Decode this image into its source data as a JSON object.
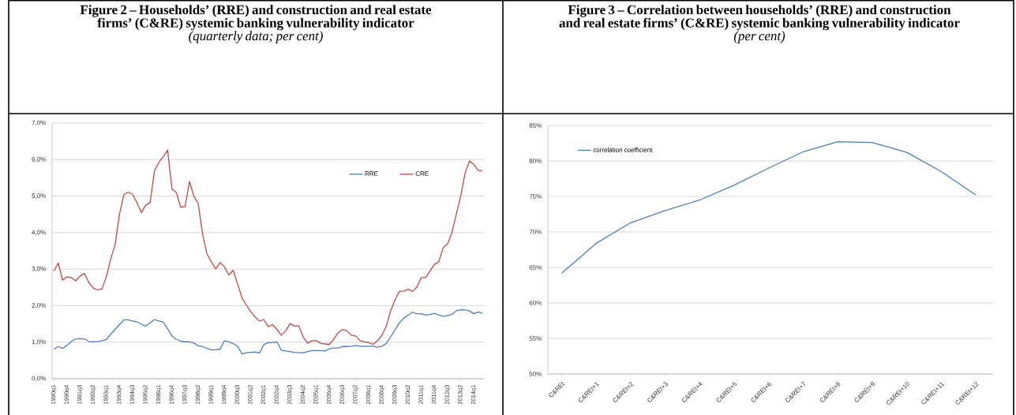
{
  "chart_data": [
    {
      "type": "line",
      "title": "Figure 2 – Households’ (RRE) and construction and real estate firms’ (C&RE) systemic banking vulnerability indicator",
      "subtitle": "(quarterly data; per cent)",
      "categories": [
        "1990q1",
        null,
        null,
        "1990q4",
        null,
        null,
        "1991q3",
        null,
        null,
        "1992q2",
        null,
        null,
        "1993q1",
        null,
        null,
        "1993q4",
        null,
        null,
        "1994q3",
        null,
        null,
        "1995q2",
        null,
        null,
        "1996q1",
        null,
        null,
        "1996q4",
        null,
        null,
        "1997q3",
        null,
        null,
        "1998q2",
        null,
        null,
        "1999q1",
        null,
        null,
        "1999q4",
        null,
        null,
        "2000q3",
        null,
        null,
        "2001q2",
        null,
        null,
        "2002q1",
        null,
        null,
        "2002q4",
        null,
        null,
        "2003q3",
        null,
        null,
        "2004q2",
        null,
        null,
        "2005q1",
        null,
        null,
        "2005q4",
        null,
        null,
        "2006q3",
        null,
        null,
        "2007q2",
        null,
        null,
        "2008q1",
        null,
        null,
        "2008q4",
        null,
        null,
        "2009q3",
        null,
        null,
        "2010q2",
        null,
        null,
        "2011q1",
        null,
        null,
        "2011q4",
        null,
        null,
        "2012q3",
        null,
        null,
        "2013q2",
        null,
        null,
        "2014q1",
        null,
        null
      ],
      "series": [
        {
          "name": "RRE",
          "color": "#4a7ebb",
          "values": [
            0.81,
            0.88,
            0.83,
            0.91,
            1.02,
            1.09,
            1.1,
            1.09,
            1.02,
            1.01,
            1.02,
            1.04,
            1.07,
            1.22,
            1.35,
            1.48,
            1.61,
            1.61,
            1.58,
            1.56,
            1.49,
            1.44,
            1.53,
            1.62,
            1.58,
            1.55,
            1.37,
            1.17,
            1.08,
            1.03,
            1.01,
            1.01,
            0.98,
            0.9,
            0.88,
            0.83,
            0.79,
            0.79,
            0.81,
            1.04,
            1.01,
            0.96,
            0.89,
            0.68,
            0.71,
            0.72,
            0.73,
            0.7,
            0.93,
            0.99,
            0.99,
            1.01,
            0.78,
            0.76,
            0.74,
            0.72,
            0.71,
            0.71,
            0.74,
            0.77,
            0.77,
            0.77,
            0.76,
            0.82,
            0.84,
            0.84,
            0.88,
            0.88,
            0.89,
            0.91,
            0.89,
            0.89,
            0.89,
            0.89,
            0.86,
            0.89,
            0.97,
            1.15,
            1.33,
            1.53,
            1.66,
            1.74,
            1.82,
            1.78,
            1.78,
            1.74,
            1.76,
            1.79,
            1.74,
            1.71,
            1.73,
            1.76,
            1.86,
            1.89,
            1.88,
            1.86,
            1.78,
            1.83,
            1.79
          ]
        },
        {
          "name": "CRE",
          "color": "#be4b48",
          "values": [
            2.95,
            3.17,
            2.7,
            2.79,
            2.77,
            2.68,
            2.81,
            2.88,
            2.63,
            2.48,
            2.43,
            2.46,
            2.79,
            3.28,
            3.67,
            4.5,
            5.04,
            5.11,
            5.05,
            4.82,
            4.55,
            4.75,
            4.82,
            5.69,
            5.92,
            6.08,
            6.26,
            5.2,
            5.1,
            4.69,
            4.72,
            5.4,
            5.0,
            4.79,
            3.96,
            3.42,
            3.2,
            3.01,
            3.18,
            3.06,
            2.84,
            2.97,
            2.59,
            2.22,
            2.02,
            1.84,
            1.69,
            1.58,
            1.62,
            1.43,
            1.48,
            1.35,
            1.19,
            1.31,
            1.51,
            1.44,
            1.45,
            1.14,
            0.97,
            1.04,
            1.04,
            0.97,
            0.95,
            0.94,
            1.09,
            1.26,
            1.35,
            1.31,
            1.19,
            1.17,
            1.04,
            1.01,
            0.99,
            0.94,
            1.04,
            1.19,
            1.44,
            1.86,
            2.16,
            2.39,
            2.4,
            2.45,
            2.39,
            2.51,
            2.77,
            2.77,
            2.95,
            3.13,
            3.2,
            3.59,
            3.69,
            4.0,
            4.5,
            5.0,
            5.62,
            5.96,
            5.87,
            5.7,
            5.7
          ]
        }
      ],
      "ylim": [
        0,
        7
      ],
      "yticks": [
        {
          "value": 0,
          "label": "0,0%"
        },
        {
          "value": 1,
          "label": "1,0%"
        },
        {
          "value": 2,
          "label": "2,0%"
        },
        {
          "value": 3,
          "label": "3,0%"
        },
        {
          "value": 4,
          "label": "4,0%"
        },
        {
          "value": 5,
          "label": "5,0%"
        },
        {
          "value": 6,
          "label": "6,0%"
        },
        {
          "value": 7,
          "label": "7,0%"
        }
      ],
      "grid": "y",
      "legend": "top right"
    },
    {
      "type": "line",
      "title": "Figure 3 – Correlation between households’ (RRE) and construction and real estate firms’ (C&RE) systemic banking vulnerability indicator",
      "subtitle": "(per cent)",
      "categories": [
        "C&REt",
        "C&REt+1",
        "C&REt+2",
        "C&REt+3",
        "C&REt+4",
        "C&REt+5",
        "C&REt+6",
        "C&REt+7",
        "C&REt+8",
        "C&REt+9",
        "C&REt+10",
        "C&REt+11",
        "C&REt+12"
      ],
      "series": [
        {
          "name": "correlation coefficient",
          "color": "#4a7ebb",
          "values": [
            64.2,
            68.4,
            71.3,
            73.0,
            74.5,
            76.6,
            79.0,
            81.3,
            82.7,
            82.6,
            81.2,
            78.5,
            75.2
          ]
        }
      ],
      "ylim": [
        50,
        85
      ],
      "yticks": [
        {
          "value": 50,
          "label": "50%"
        },
        {
          "value": 55,
          "label": "55%"
        },
        {
          "value": 60,
          "label": "60%"
        },
        {
          "value": 65,
          "label": "65%"
        },
        {
          "value": 70,
          "label": "70%"
        },
        {
          "value": 75,
          "label": "75%"
        },
        {
          "value": 80,
          "label": "80%"
        },
        {
          "value": 85,
          "label": "85%"
        }
      ],
      "grid": "y",
      "legend": "top left"
    }
  ]
}
